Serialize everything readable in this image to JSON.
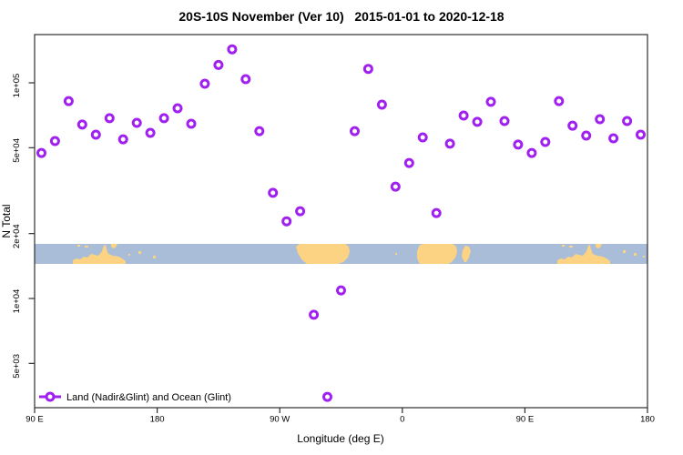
{
  "title": "20S-10S November (Ver 10)   2015-01-01 to 2020-12-18",
  "chart_data": {
    "type": "scatter",
    "title": "20S-10S November (Ver 10)   2015-01-01 to 2020-12-18",
    "xlabel": "Longitude (deg E)",
    "ylabel": "N Total",
    "y_scale": "log",
    "ylim": [
      3000,
      170000
    ],
    "x_axis_note": "longitude wraps: 90E to 180, -180 to 0, 0 to 180 (450 deg span)",
    "x_ticks": [
      {
        "lon": 90,
        "label": "90 E"
      },
      {
        "lon": 180,
        "label": "180"
      },
      {
        "lon": 270,
        "label": "90 W"
      },
      {
        "lon": 360,
        "label": "0"
      },
      {
        "lon": 450,
        "label": "90 E"
      },
      {
        "lon": 540,
        "label": "180"
      }
    ],
    "y_ticks": [
      {
        "value": 100000,
        "label": "1e+05"
      },
      {
        "value": 50000,
        "label": "5e+04"
      },
      {
        "value": 20000,
        "label": "2e+04"
      },
      {
        "value": 10000,
        "label": "1e+04"
      },
      {
        "value": 5000,
        "label": "5e+03"
      }
    ],
    "series": [
      {
        "name": "Land (Nadir&Glint) and Ocean (Glint)",
        "marker": "open-circle",
        "color": "#A020F0",
        "points": [
          [
            95,
            47300
          ],
          [
            105,
            53700
          ],
          [
            115,
            82300
          ],
          [
            125,
            64000
          ],
          [
            135,
            57500
          ],
          [
            145,
            68500
          ],
          [
            155,
            54700
          ],
          [
            165,
            65200
          ],
          [
            175,
            58600
          ],
          [
            185,
            68500
          ],
          [
            195,
            76200
          ],
          [
            205,
            64600
          ],
          [
            215,
            99000
          ],
          [
            225,
            121000
          ],
          [
            235,
            143000
          ],
          [
            245,
            104000
          ],
          [
            255,
            59700
          ],
          [
            265,
            30900
          ],
          [
            275,
            22800
          ],
          [
            285,
            25400
          ],
          [
            295,
            8400
          ],
          [
            305,
            3500
          ],
          [
            315,
            10900
          ],
          [
            325,
            59700
          ],
          [
            335,
            116000
          ],
          [
            345,
            79200
          ],
          [
            355,
            33000
          ],
          [
            365,
            42500
          ],
          [
            375,
            55800
          ],
          [
            385,
            24900
          ],
          [
            395,
            52200
          ],
          [
            405,
            70500
          ],
          [
            415,
            65900
          ],
          [
            425,
            81600
          ],
          [
            435,
            66500
          ],
          [
            445,
            51700
          ],
          [
            455,
            47300
          ],
          [
            465,
            53200
          ],
          [
            475,
            82300
          ],
          [
            485,
            63300
          ],
          [
            495,
            56900
          ],
          [
            505,
            67800
          ],
          [
            515,
            55300
          ],
          [
            525,
            66500
          ],
          [
            535,
            57500
          ]
        ]
      }
    ],
    "legend": {
      "label": "Land (Nadir&Glint) and Ocean (Glint)",
      "position": "bottom-left"
    },
    "map_band": {
      "description": "10S-20S latitude world map strip",
      "ocean_color": "#A9BCD8",
      "land_color": "#FBD383"
    },
    "frame_color": "#2e2e2e"
  }
}
